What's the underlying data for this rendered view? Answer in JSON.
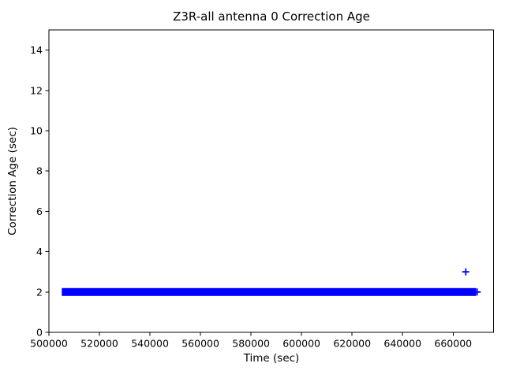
{
  "chart_data": {
    "type": "scatter",
    "title": "Z3R-all antenna 0 Correction Age",
    "xlabel": "Time (sec)",
    "ylabel": "Correction Age (sec)",
    "xlim": [
      500000,
      676000
    ],
    "ylim": [
      0,
      15
    ],
    "xticks": [
      500000,
      520000,
      540000,
      560000,
      580000,
      600000,
      620000,
      640000,
      660000
    ],
    "yticks": [
      0,
      2,
      4,
      6,
      8,
      10,
      12,
      14
    ],
    "grid": false,
    "legend": null,
    "marker": "plus",
    "marker_color": "#0000ff",
    "axes_color": "#000000",
    "background_color": "#ffffff",
    "series": [
      {
        "name": "correction-age",
        "dense_run": {
          "y": 2,
          "x_start": 506500,
          "x_end": 667700
        },
        "points": [
          [
            506500,
            2
          ],
          [
            665000,
            3
          ],
          [
            669500,
            2
          ]
        ]
      }
    ]
  }
}
